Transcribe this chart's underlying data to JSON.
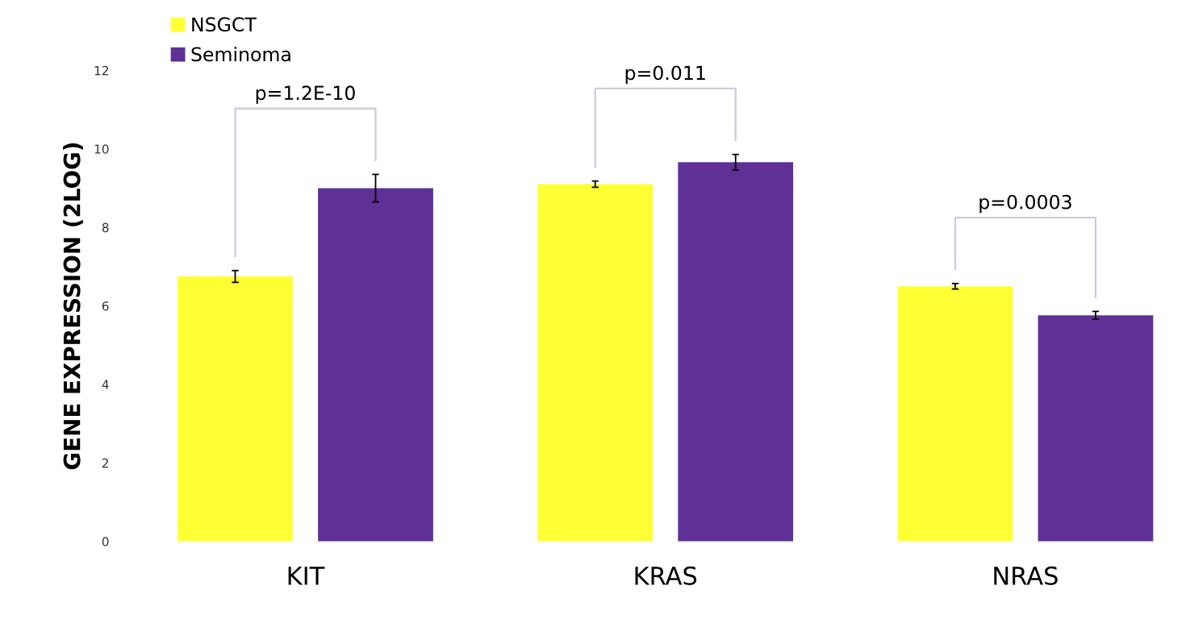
{
  "chart_data": {
    "type": "bar",
    "ylabel": "GENE EXPRESSION (2LOG)",
    "categories": [
      "KIT",
      "KRAS",
      "NRAS"
    ],
    "series": [
      {
        "name": "NSGCT",
        "color": "#ffff33",
        "values": [
          6.75,
          9.1,
          6.5
        ],
        "errors": [
          0.15,
          0.08,
          0.07
        ]
      },
      {
        "name": "Seminoma",
        "color": "#5f3197",
        "values": [
          9.0,
          9.66,
          5.76
        ],
        "errors": [
          0.35,
          0.2,
          0.1
        ]
      }
    ],
    "ylim": [
      0,
      12
    ],
    "yticks": [
      0,
      2,
      4,
      6,
      8,
      10,
      12
    ],
    "grid": false,
    "legend": "top left",
    "annotations": [
      "p=1.2E-10",
      "p=0.011",
      "p=0.0003"
    ]
  }
}
